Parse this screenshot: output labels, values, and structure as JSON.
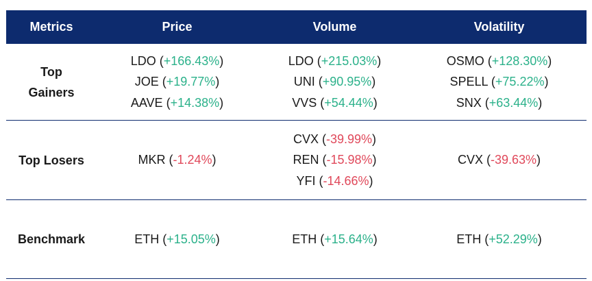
{
  "headers": [
    "Metrics",
    "Price",
    "Volume",
    "Volatility"
  ],
  "colors": {
    "header_bg": "#0d2b6e",
    "positive": "#2bb18a",
    "negative": "#e0485a"
  },
  "rows": [
    {
      "label": "Top Gainers",
      "price": [
        {
          "ticker": "LDO",
          "change": "+166.43%"
        },
        {
          "ticker": "JOE",
          "change": "+19.77%"
        },
        {
          "ticker": "AAVE",
          "change": "+14.38%"
        }
      ],
      "volume": [
        {
          "ticker": "LDO",
          "change": "+215.03%"
        },
        {
          "ticker": "UNI",
          "change": "+90.95%"
        },
        {
          "ticker": "VVS",
          "change": "+54.44%"
        }
      ],
      "volatility": [
        {
          "ticker": "OSMO",
          "change": "+128.30%"
        },
        {
          "ticker": "SPELL",
          "change": "+75.22%"
        },
        {
          "ticker": "SNX",
          "change": "+63.44%"
        }
      ]
    },
    {
      "label": "Top Losers",
      "price": [
        {
          "ticker": "MKR",
          "change": "-1.24%"
        }
      ],
      "volume": [
        {
          "ticker": "CVX",
          "change": "-39.99%"
        },
        {
          "ticker": "REN",
          "change": "-15.98%"
        },
        {
          "ticker": "YFI",
          "change": "-14.66%"
        }
      ],
      "volatility": [
        {
          "ticker": "CVX",
          "change": "-39.63%"
        }
      ]
    },
    {
      "label": "Benchmark",
      "price": [
        {
          "ticker": "ETH",
          "change": "+15.05%"
        }
      ],
      "volume": [
        {
          "ticker": "ETH",
          "change": "+15.64%"
        }
      ],
      "volatility": [
        {
          "ticker": "ETH",
          "change": "+52.29%"
        }
      ]
    }
  ]
}
